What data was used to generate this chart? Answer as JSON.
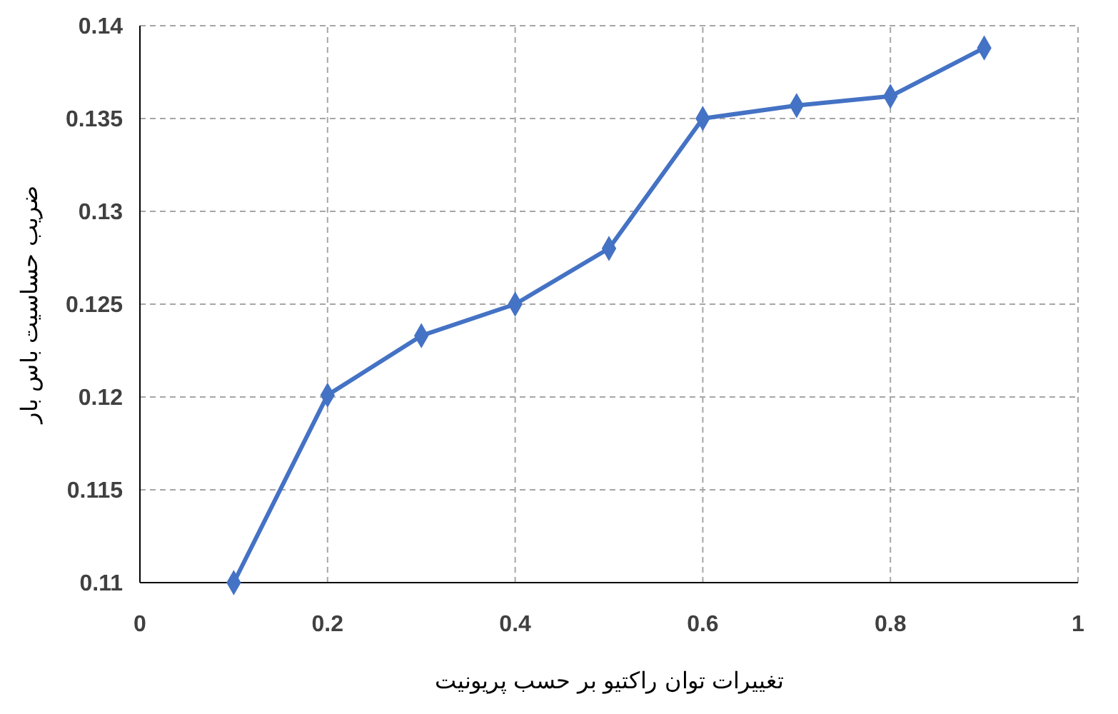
{
  "chart_data": {
    "type": "line",
    "xlabel": "تغییرات توان راکتیو بر حسب پریونیت",
    "ylabel": "ضریب حساسیت باس بار",
    "x": [
      0.1,
      0.2,
      0.3,
      0.4,
      0.5,
      0.6,
      0.7,
      0.8,
      0.9
    ],
    "series": [
      {
        "color": "#4472c4",
        "values": [
          0.11,
          0.1201,
          0.1233,
          0.125,
          0.128,
          0.135,
          0.1357,
          0.1362,
          0.1388
        ]
      }
    ],
    "xlim": [
      0,
      1
    ],
    "xticks": [
      0,
      0.2,
      0.4,
      0.6,
      0.8,
      1
    ],
    "ylim": [
      0.11,
      0.14
    ],
    "yticks": [
      0.11,
      0.115,
      0.12,
      0.125,
      0.13,
      0.135,
      0.14
    ],
    "grid": true,
    "marker": "diamond",
    "line_style": "solid"
  }
}
